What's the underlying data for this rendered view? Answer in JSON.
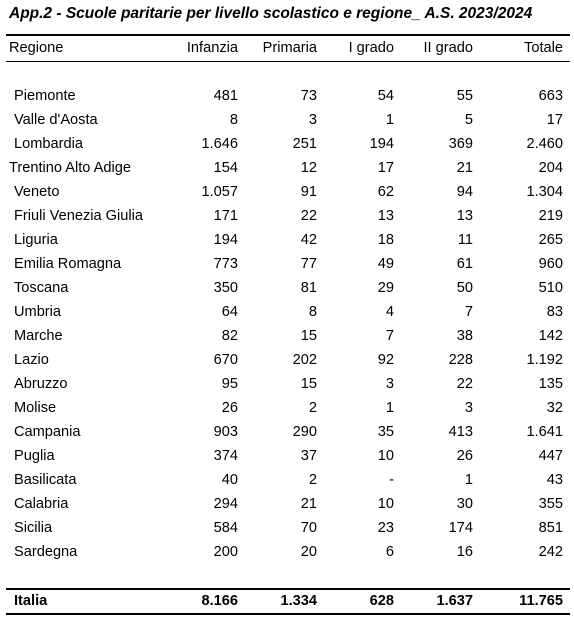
{
  "title": "App.2 - Scuole paritarie per livello scolastico e regione_ A.S. 2023/2024",
  "columns": [
    "Regione",
    "Infanzia",
    "Primaria",
    "I grado",
    "II grado",
    "Totale"
  ],
  "rows": [
    [
      "Piemonte",
      "481",
      "73",
      "54",
      "55",
      "663"
    ],
    [
      "Valle d'Aosta",
      "8",
      "3",
      "1",
      "5",
      "17"
    ],
    [
      "Lombardia",
      "1.646",
      "251",
      "194",
      "369",
      "2.460"
    ],
    [
      "Trentino Alto Adige",
      "154",
      "12",
      "17",
      "21",
      "204"
    ],
    [
      "Veneto",
      "1.057",
      "91",
      "62",
      "94",
      "1.304"
    ],
    [
      "Friuli Venezia Giulia",
      "171",
      "22",
      "13",
      "13",
      "219"
    ],
    [
      "Liguria",
      "194",
      "42",
      "18",
      "11",
      "265"
    ],
    [
      "Emilia Romagna",
      "773",
      "77",
      "49",
      "61",
      "960"
    ],
    [
      "Toscana",
      "350",
      "81",
      "29",
      "50",
      "510"
    ],
    [
      "Umbria",
      "64",
      "8",
      "4",
      "7",
      "83"
    ],
    [
      "Marche",
      "82",
      "15",
      "7",
      "38",
      "142"
    ],
    [
      "Lazio",
      "670",
      "202",
      "92",
      "228",
      "1.192"
    ],
    [
      "Abruzzo",
      "95",
      "15",
      "3",
      "22",
      "135"
    ],
    [
      "Molise",
      "26",
      "2",
      "1",
      "3",
      "32"
    ],
    [
      "Campania",
      "903",
      "290",
      "35",
      "413",
      "1.641"
    ],
    [
      "Puglia",
      "374",
      "37",
      "10",
      "26",
      "447"
    ],
    [
      "Basilicata",
      "40",
      "2",
      "-",
      "1",
      "43"
    ],
    [
      "Calabria",
      "294",
      "21",
      "10",
      "30",
      "355"
    ],
    [
      "Sicilia",
      "584",
      "70",
      "23",
      "174",
      "851"
    ],
    [
      "Sardegna",
      "200",
      "20",
      "6",
      "16",
      "242"
    ]
  ],
  "total": [
    "Italia",
    "8.166",
    "1.334",
    "628",
    "1.637",
    "11.765"
  ]
}
